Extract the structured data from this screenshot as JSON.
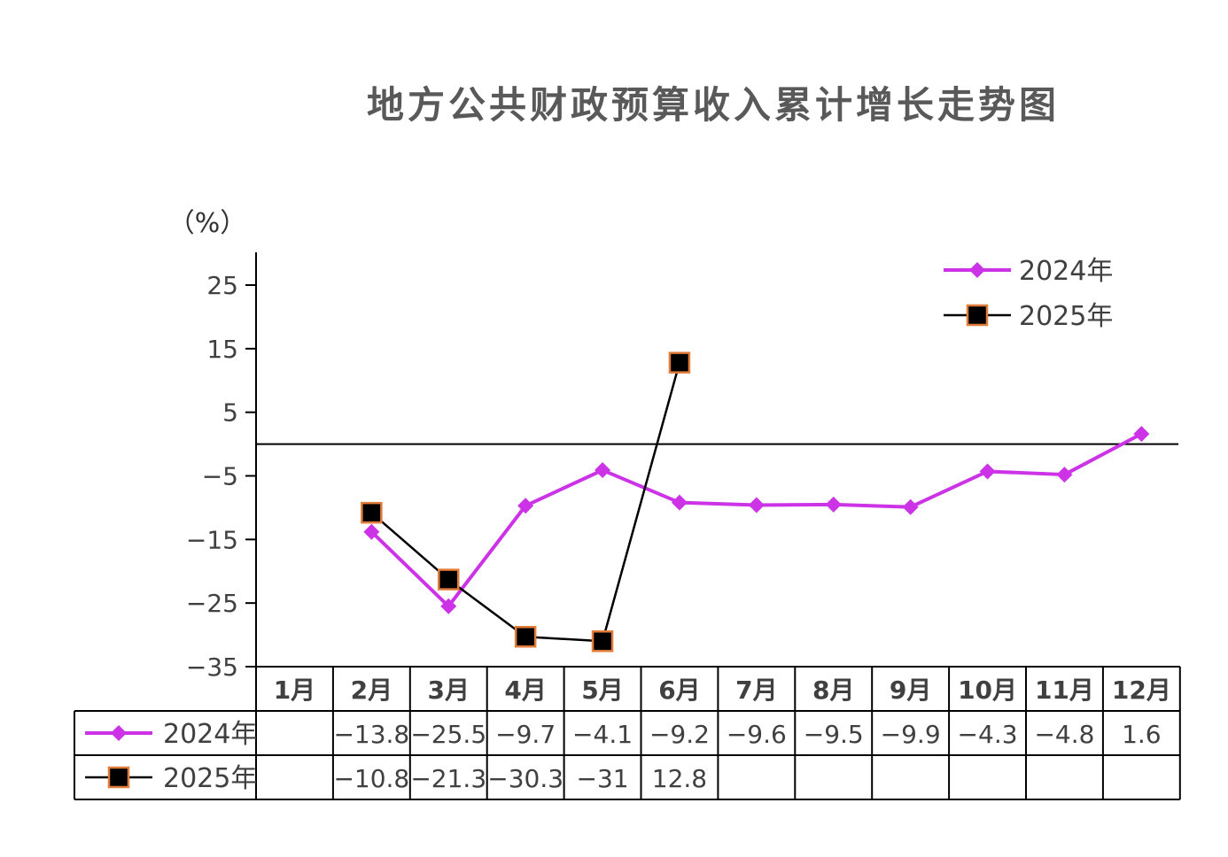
{
  "chart_data": {
    "type": "line",
    "title": "地方公共财政预算收入累计增长走势图",
    "ylabel": "（%）",
    "xlabel": "",
    "ylim": [
      -35,
      30
    ],
    "yticks": [
      25,
      15,
      5,
      -5,
      -15,
      -25,
      -35
    ],
    "ytick_labels": [
      "25",
      "15",
      "5",
      "−5",
      "−15",
      "−25",
      "−35"
    ],
    "categories": [
      "1月",
      "2月",
      "3月",
      "4月",
      "5月",
      "6月",
      "7月",
      "8月",
      "9月",
      "10月",
      "11月",
      "12月"
    ],
    "series": [
      {
        "name": "2024年",
        "color": "#CC33E6",
        "marker": "diamond",
        "values": [
          null,
          -13.8,
          -25.5,
          -9.7,
          -4.1,
          -9.2,
          -9.6,
          -9.5,
          -9.9,
          -4.3,
          -4.8,
          1.6
        ],
        "labels": [
          "",
          "−13.8",
          "−25.5",
          "−9.7",
          "−4.1",
          "−9.2",
          "−9.6",
          "−9.5",
          "−9.9",
          "−4.3",
          "−4.8",
          "1.6"
        ]
      },
      {
        "name": "2025年",
        "color": "#000000",
        "marker": "square",
        "marker_edge": "#E07B39",
        "values": [
          null,
          -10.8,
          -21.3,
          -30.3,
          -31,
          12.8,
          null,
          null,
          null,
          null,
          null,
          null
        ],
        "labels": [
          "",
          "−10.8",
          "−21.3",
          "−30.3",
          "−31",
          "12.8",
          "",
          "",
          "",
          "",
          "",
          ""
        ]
      }
    ],
    "legend": "top-right",
    "grid": false,
    "data_table": true
  }
}
